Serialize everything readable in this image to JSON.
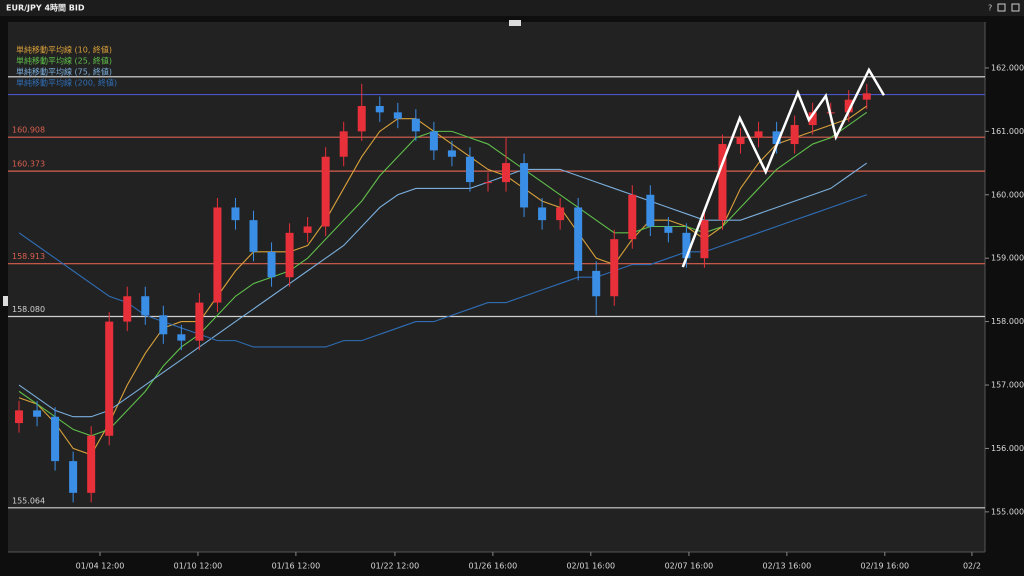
{
  "window_title": "EUR/JPY 4時間 BID",
  "chart_data": {
    "type": "candlestick",
    "up_color": "#e8303a",
    "down_color": "#3a8ee6",
    "open": [
      156.4,
      156.6,
      156.5,
      155.8,
      155.3,
      156.2,
      158.0,
      158.4,
      158.1,
      157.8,
      157.7,
      158.3,
      159.8,
      159.6,
      159.1,
      158.7,
      159.4,
      159.5,
      160.6,
      161.0,
      161.4,
      161.3,
      161.2,
      161.0,
      160.7,
      160.6,
      160.2,
      160.2,
      160.5,
      159.8,
      159.6,
      159.8,
      158.8,
      158.4,
      159.3,
      160.0,
      159.5,
      159.4,
      159.0,
      159.6,
      160.8,
      160.9,
      161.0,
      160.8,
      161.1,
      161.3,
      161.3,
      161.5
    ],
    "high": [
      156.75,
      156.75,
      156.65,
      155.95,
      156.35,
      158.15,
      158.55,
      158.55,
      158.25,
      157.95,
      158.45,
      159.95,
      159.95,
      159.75,
      159.25,
      159.55,
      159.65,
      160.75,
      161.15,
      161.75,
      161.55,
      161.45,
      161.35,
      161.15,
      160.85,
      160.75,
      160.35,
      160.9,
      160.65,
      159.95,
      159.95,
      159.95,
      158.95,
      159.45,
      160.15,
      160.15,
      159.65,
      159.55,
      159.75,
      160.95,
      161.05,
      161.15,
      161.15,
      161.25,
      161.45,
      161.45,
      161.65,
      161.75
    ],
    "low": [
      156.25,
      156.35,
      155.65,
      155.15,
      155.15,
      156.05,
      157.85,
      157.95,
      157.65,
      157.55,
      157.55,
      158.15,
      159.45,
      158.95,
      158.55,
      158.55,
      159.25,
      159.35,
      160.45,
      160.85,
      161.15,
      161.05,
      160.85,
      160.55,
      160.45,
      160.05,
      160.05,
      160.05,
      159.65,
      159.45,
      159.45,
      158.65,
      158.1,
      158.25,
      159.15,
      159.35,
      159.25,
      158.85,
      158.85,
      159.45,
      160.65,
      160.75,
      160.65,
      160.65,
      160.95,
      161.15,
      161.15,
      161.35
    ],
    "close": [
      156.6,
      156.5,
      155.8,
      155.3,
      156.2,
      158.0,
      158.4,
      158.1,
      157.8,
      157.7,
      158.3,
      159.8,
      159.6,
      159.1,
      158.7,
      159.4,
      159.5,
      160.6,
      161.0,
      161.4,
      161.3,
      161.2,
      161.0,
      160.7,
      160.6,
      160.2,
      160.2,
      160.5,
      159.8,
      159.6,
      159.8,
      158.8,
      158.4,
      159.3,
      160.0,
      159.5,
      159.4,
      159.0,
      159.6,
      160.8,
      160.9,
      161.0,
      160.8,
      161.1,
      161.3,
      161.3,
      161.5,
      161.6
    ],
    "series": [
      {
        "name": "単純移動平均線 (10, 終値)",
        "color": "#d9a03a",
        "values": [
          156.8,
          156.7,
          156.4,
          156.0,
          155.9,
          156.4,
          157.0,
          157.5,
          157.9,
          158.0,
          158.0,
          158.4,
          158.8,
          159.1,
          159.1,
          159.1,
          159.2,
          159.6,
          160.1,
          160.6,
          161.0,
          161.2,
          161.2,
          161.0,
          160.8,
          160.6,
          160.4,
          160.3,
          160.1,
          159.9,
          159.8,
          159.4,
          159.0,
          158.9,
          159.3,
          159.6,
          159.6,
          159.5,
          159.3,
          159.5,
          160.1,
          160.5,
          160.8,
          160.9,
          161.0,
          161.1,
          161.2,
          161.4
        ]
      },
      {
        "name": "単純移動平均線 (25, 終値)",
        "color": "#5fbf4a",
        "values": [
          156.9,
          156.7,
          156.5,
          156.3,
          156.2,
          156.3,
          156.6,
          156.9,
          157.3,
          157.6,
          157.8,
          158.1,
          158.4,
          158.6,
          158.7,
          158.8,
          159.0,
          159.3,
          159.6,
          159.9,
          160.3,
          160.6,
          160.9,
          161.0,
          161.0,
          160.9,
          160.8,
          160.6,
          160.4,
          160.2,
          160.0,
          159.8,
          159.6,
          159.4,
          159.4,
          159.5,
          159.5,
          159.5,
          159.4,
          159.5,
          159.8,
          160.1,
          160.4,
          160.6,
          160.8,
          160.9,
          161.1,
          161.3
        ]
      },
      {
        "name": "単純移動平均線 (75, 終値)",
        "color": "#7aaedc",
        "values": [
          157.0,
          156.8,
          156.6,
          156.5,
          156.5,
          156.6,
          156.8,
          157.0,
          157.2,
          157.4,
          157.6,
          157.8,
          158.0,
          158.2,
          158.4,
          158.6,
          158.8,
          159.0,
          159.2,
          159.5,
          159.8,
          160.0,
          160.1,
          160.1,
          160.1,
          160.1,
          160.2,
          160.3,
          160.4,
          160.4,
          160.4,
          160.3,
          160.2,
          160.1,
          160.0,
          159.9,
          159.8,
          159.7,
          159.6,
          159.6,
          159.6,
          159.7,
          159.8,
          159.9,
          160.0,
          160.1,
          160.3,
          160.5
        ]
      },
      {
        "name": "単純移動平均線 (200, 終値)",
        "color": "#2f6db5",
        "values": [
          159.4,
          159.2,
          159.0,
          158.8,
          158.6,
          158.4,
          158.3,
          158.1,
          158.0,
          157.9,
          157.8,
          157.7,
          157.7,
          157.6,
          157.6,
          157.6,
          157.6,
          157.6,
          157.7,
          157.7,
          157.8,
          157.9,
          158.0,
          158.0,
          158.1,
          158.2,
          158.3,
          158.3,
          158.4,
          158.5,
          158.6,
          158.7,
          158.7,
          158.8,
          158.9,
          158.9,
          159.0,
          159.1,
          159.1,
          159.2,
          159.3,
          159.4,
          159.5,
          159.6,
          159.7,
          159.8,
          159.9,
          160.0
        ]
      }
    ],
    "hlines": [
      {
        "value": 161.86,
        "color": "#e0e0e0"
      },
      {
        "value": 161.58,
        "color": "#4a55c8"
      },
      {
        "value": 160.908,
        "label": "160.908",
        "color": "#d8604f"
      },
      {
        "value": 160.373,
        "label": "160.373",
        "color": "#d8604f"
      },
      {
        "value": 158.913,
        "label": "158.913",
        "color": "#d8604f"
      },
      {
        "value": 158.08,
        "label": "158.080",
        "color": "#d0d0d0"
      },
      {
        "value": 155.064,
        "label": "155.064",
        "color": "#d0d0d0"
      }
    ],
    "zigzag": {
      "color": "#ffffff",
      "x": [
        36.8,
        39.96,
        41.4,
        43.18,
        43.79,
        44.73,
        45.29,
        47.12,
        47.95
      ],
      "y": [
        158.86,
        161.21,
        160.36,
        161.61,
        161.18,
        161.56,
        160.91,
        161.97,
        161.57
      ]
    },
    "xlim": [
      -0.5,
      53
    ],
    "xticks": [
      {
        "value": 4.49,
        "label": "01/04 12:00"
      },
      {
        "value": 9.92,
        "label": "01/10 12:00"
      },
      {
        "value": 15.35,
        "label": "01/16 12:00"
      },
      {
        "value": 20.84,
        "label": "01/22 12:00"
      },
      {
        "value": 26.27,
        "label": "01/26 16:00"
      },
      {
        "value": 31.7,
        "label": "02/01 16:00"
      },
      {
        "value": 37.14,
        "label": "02/07 16:00"
      },
      {
        "value": 42.57,
        "label": "02/13 16:00"
      },
      {
        "value": 48.0,
        "label": "02/19 16:00"
      },
      {
        "value": 52.83,
        "label": "02/2"
      }
    ],
    "ylim": [
      154.43,
      162.63
    ],
    "yticks": [
      {
        "value": 155,
        "label": "155.000"
      },
      {
        "value": 156,
        "label": "156.000"
      },
      {
        "value": 157,
        "label": "157.000"
      },
      {
        "value": 158,
        "label": "158.000"
      },
      {
        "value": 159,
        "label": "159.000"
      },
      {
        "value": 160,
        "label": "160.000"
      },
      {
        "value": 161,
        "label": "161.000"
      },
      {
        "value": 162,
        "label": "162.000"
      }
    ]
  }
}
